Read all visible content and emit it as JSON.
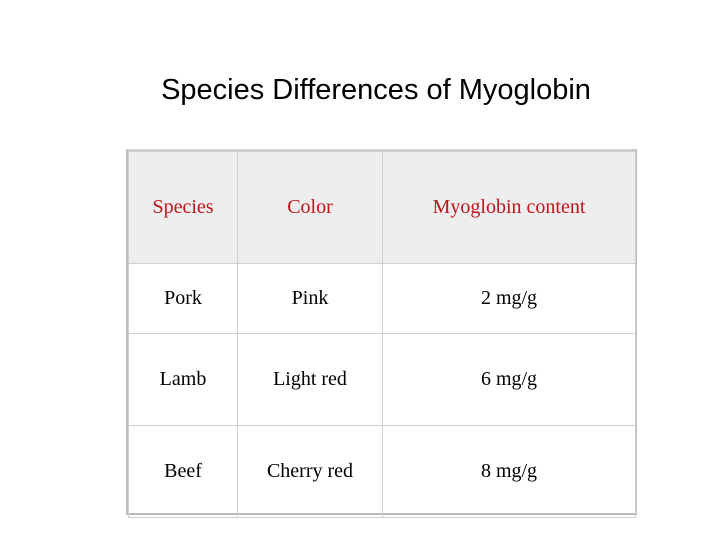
{
  "title": "Species Differences of Myoglobin",
  "colors": {
    "header_text": "#c0141b",
    "header_background": "#eeeeee",
    "border": "#cfcfcf"
  },
  "table": {
    "headers": [
      "Species",
      "Color",
      "Myoglobin content"
    ],
    "rows": [
      [
        "Pork",
        "Pink",
        "2 mg/g"
      ],
      [
        "Lamb",
        "Light red",
        "6 mg/g"
      ],
      [
        "Beef",
        "Cherry red",
        "8 mg/g"
      ]
    ]
  }
}
